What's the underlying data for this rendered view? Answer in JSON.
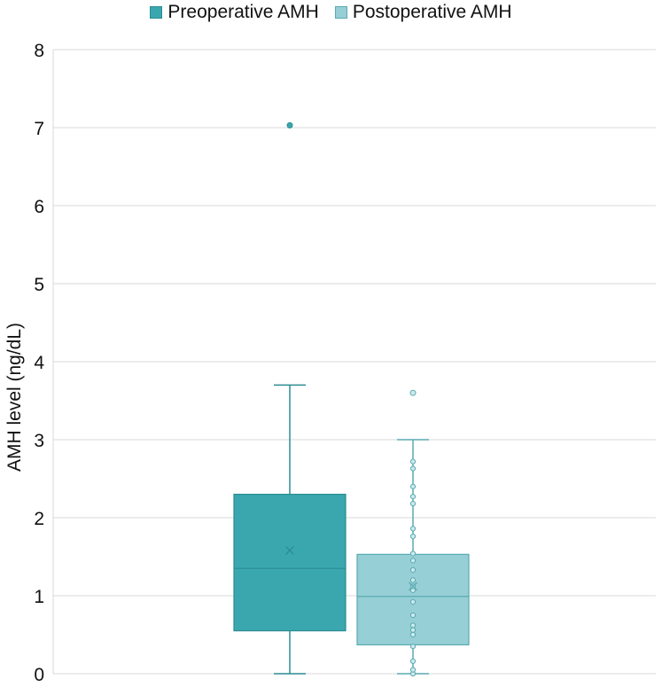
{
  "chart_data": {
    "type": "box",
    "title": "",
    "xlabel": "",
    "ylabel": "AMH level (ng/dL)",
    "ylim": [
      0,
      8
    ],
    "yticks": [
      0,
      1,
      2,
      3,
      4,
      5,
      6,
      7,
      8
    ],
    "grid": true,
    "legend_position": "top-center",
    "series": [
      {
        "name": "Preoperative AMH",
        "color": "#3aa7ae",
        "stroke": "#2b8c93",
        "whisker_low": 0.0,
        "q1": 0.55,
        "median": 1.35,
        "mean": 1.58,
        "q3": 2.3,
        "whisker_high": 3.7,
        "outliers": [
          7.03
        ],
        "points": []
      },
      {
        "name": "Postoperative AMH",
        "color": "#96cfd5",
        "stroke": "#5aaab2",
        "whisker_low": 0.0,
        "q1": 0.37,
        "median": 0.99,
        "mean": 1.12,
        "q3": 1.53,
        "whisker_high": 3.0,
        "outliers": [
          3.6
        ],
        "points": [
          0.0,
          0.05,
          0.16,
          0.35,
          0.5,
          0.56,
          0.62,
          0.75,
          0.92,
          1.07,
          1.12,
          1.2,
          1.33,
          1.45,
          1.54,
          1.76,
          1.86,
          2.18,
          2.27,
          2.4,
          2.63,
          2.72
        ]
      }
    ]
  }
}
